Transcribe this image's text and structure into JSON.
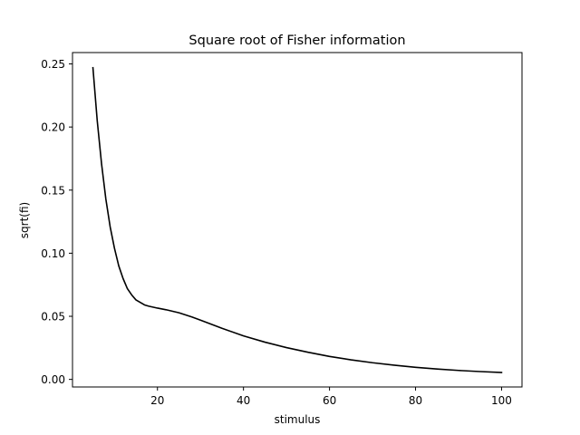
{
  "chart_data": {
    "type": "line",
    "title": "Square root of Fisher information",
    "xlabel": "stimulus",
    "ylabel": "sqrt(fi)",
    "xlim": [
      0.25,
      104.75
    ],
    "ylim": [
      -0.006,
      0.259
    ],
    "xticks": [
      20,
      40,
      60,
      80,
      100
    ],
    "xtick_labels": [
      "20",
      "40",
      "60",
      "80",
      "100"
    ],
    "yticks": [
      0.0,
      0.05,
      0.1,
      0.15,
      0.2,
      0.25
    ],
    "ytick_labels": [
      "0.00",
      "0.05",
      "0.10",
      "0.15",
      "0.20",
      "0.25"
    ],
    "grid": false,
    "series": [
      {
        "color": "#000000",
        "x": [
          5,
          6,
          7,
          8,
          9,
          10,
          11,
          12,
          13,
          14,
          15,
          16,
          17,
          18,
          20,
          22,
          25,
          28,
          30,
          35,
          40,
          45,
          50,
          55,
          60,
          65,
          70,
          75,
          80,
          85,
          90,
          95,
          100
        ],
        "y": [
          0.247,
          0.205,
          0.171,
          0.143,
          0.121,
          0.104,
          0.09,
          0.08,
          0.072,
          0.067,
          0.063,
          0.061,
          0.059,
          0.058,
          0.0565,
          0.0552,
          0.0528,
          0.0495,
          0.047,
          0.0405,
          0.0345,
          0.0295,
          0.0252,
          0.0215,
          0.0182,
          0.0155,
          0.0132,
          0.0113,
          0.0096,
          0.0082,
          0.0071,
          0.0062,
          0.0055
        ]
      }
    ]
  }
}
